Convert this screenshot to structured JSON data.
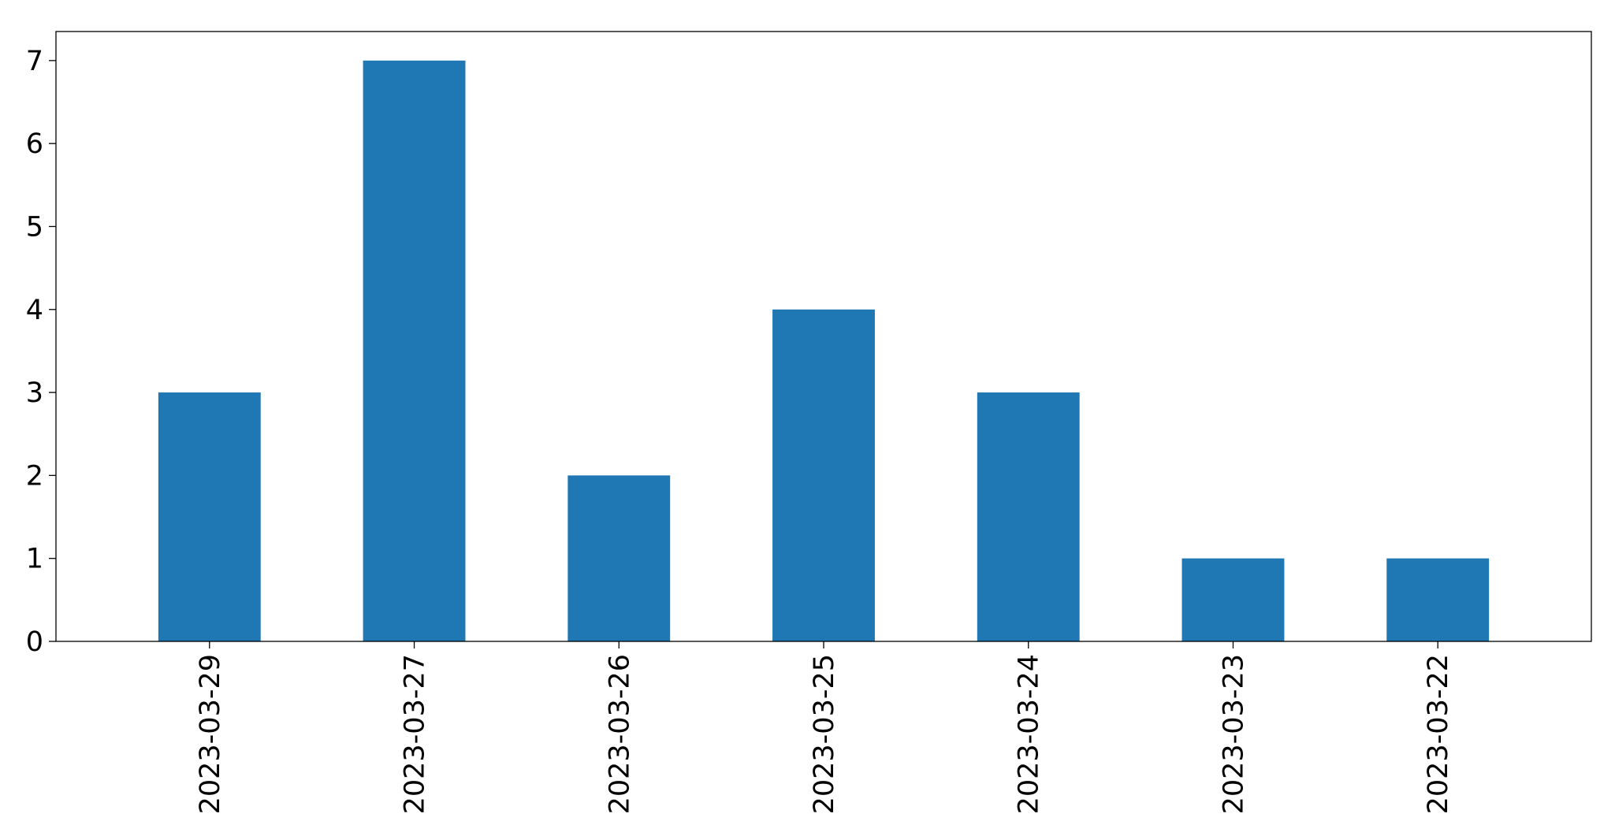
{
  "chart_data": {
    "type": "bar",
    "title": "",
    "xlabel": "",
    "ylabel": "",
    "categories": [
      "2023-03-29",
      "2023-03-27",
      "2023-03-26",
      "2023-03-25",
      "2023-03-24",
      "2023-03-23",
      "2023-03-22"
    ],
    "values": [
      3,
      7,
      2,
      4,
      3,
      1,
      1
    ],
    "ylim": [
      0,
      7.35
    ],
    "yticks": [
      0,
      1,
      2,
      3,
      4,
      5,
      6,
      7
    ],
    "grid": false,
    "legend": "none",
    "bar_color": "#1f77b4"
  }
}
